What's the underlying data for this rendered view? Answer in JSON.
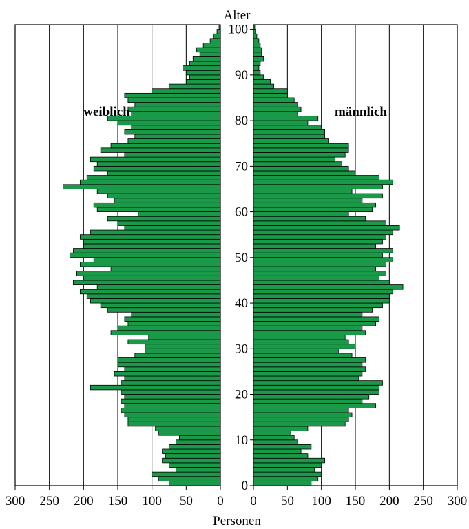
{
  "chart_data": {
    "type": "bar",
    "orientation": "horizontal-population-pyramid",
    "y_axis_title": "Alter",
    "x_axis_title": "Personen",
    "y_ticks": [
      0,
      10,
      20,
      30,
      40,
      50,
      60,
      70,
      80,
      90,
      100
    ],
    "x_ticks": [
      300,
      250,
      200,
      150,
      100,
      50,
      0
    ],
    "right_x_ticks": [
      0,
      50,
      100,
      150,
      200,
      250,
      300
    ],
    "xlim": [
      0,
      300
    ],
    "ylim": [
      0,
      101
    ],
    "grid": true,
    "colors": {
      "bar": "#1a9a48"
    },
    "age_categories": [
      0,
      1,
      2,
      3,
      4,
      5,
      6,
      7,
      8,
      9,
      10,
      11,
      12,
      13,
      14,
      15,
      16,
      17,
      18,
      19,
      20,
      21,
      22,
      23,
      24,
      25,
      26,
      27,
      28,
      29,
      30,
      31,
      32,
      33,
      34,
      35,
      36,
      37,
      38,
      39,
      40,
      41,
      42,
      43,
      44,
      45,
      46,
      47,
      48,
      49,
      50,
      51,
      52,
      53,
      54,
      55,
      56,
      57,
      58,
      59,
      60,
      61,
      62,
      63,
      64,
      65,
      66,
      67,
      68,
      69,
      70,
      71,
      72,
      73,
      74,
      75,
      76,
      77,
      78,
      79,
      80,
      81,
      82,
      83,
      84,
      85,
      86,
      87,
      88,
      89,
      90,
      91,
      92,
      93,
      94,
      95,
      96,
      97,
      98,
      99,
      100
    ],
    "series": [
      {
        "name": "weiblich",
        "side": "left",
        "values": [
          75,
          90,
          100,
          65,
          75,
          85,
          80,
          85,
          75,
          65,
          60,
          90,
          95,
          135,
          135,
          140,
          145,
          140,
          145,
          140,
          145,
          190,
          145,
          140,
          155,
          140,
          150,
          150,
          125,
          110,
          110,
          135,
          105,
          160,
          150,
          135,
          140,
          130,
          165,
          175,
          190,
          195,
          205,
          180,
          215,
          200,
          210,
          160,
          205,
          185,
          220,
          215,
          200,
          200,
          205,
          190,
          140,
          150,
          165,
          120,
          180,
          185,
          155,
          165,
          180,
          230,
          205,
          195,
          165,
          185,
          180,
          190,
          140,
          175,
          160,
          135,
          125,
          140,
          130,
          150,
          165,
          130,
          135,
          125,
          135,
          140,
          100,
          75,
          50,
          45,
          50,
          55,
          45,
          40,
          30,
          35,
          25,
          15,
          10,
          5,
          2
        ]
      },
      {
        "name": "männlich",
        "side": "right",
        "values": [
          85,
          95,
          100,
          90,
          100,
          105,
          80,
          70,
          85,
          65,
          60,
          55,
          80,
          135,
          140,
          145,
          140,
          180,
          160,
          170,
          185,
          185,
          190,
          155,
          160,
          165,
          160,
          165,
          145,
          125,
          150,
          140,
          135,
          165,
          160,
          180,
          185,
          160,
          175,
          190,
          200,
          200,
          205,
          220,
          200,
          185,
          195,
          180,
          195,
          205,
          190,
          205,
          180,
          190,
          195,
          205,
          215,
          195,
          165,
          140,
          175,
          180,
          160,
          190,
          145,
          190,
          205,
          185,
          150,
          140,
          130,
          120,
          135,
          140,
          140,
          110,
          105,
          105,
          100,
          80,
          95,
          65,
          70,
          65,
          60,
          50,
          50,
          30,
          25,
          15,
          10,
          8,
          10,
          15,
          12,
          12,
          10,
          8,
          5,
          3,
          2
        ]
      }
    ]
  }
}
